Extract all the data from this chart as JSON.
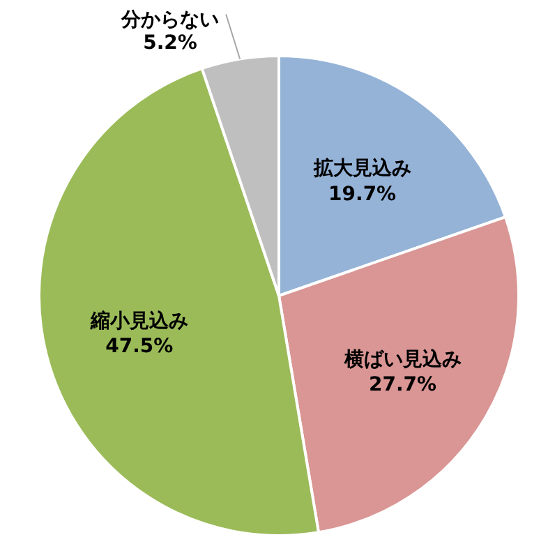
{
  "chart_data": {
    "type": "pie",
    "categories": [
      "拡大見込み",
      "横ばい見込み",
      "縮小見込み",
      "分からない"
    ],
    "values": [
      19.7,
      27.7,
      47.5,
      5.2
    ],
    "colors": [
      "#95b3d7",
      "#d99694",
      "#9bbb59",
      "#bfbfbf"
    ],
    "value_labels": [
      "19.7%",
      "27.7%",
      "47.5%",
      "5.2%"
    ]
  }
}
